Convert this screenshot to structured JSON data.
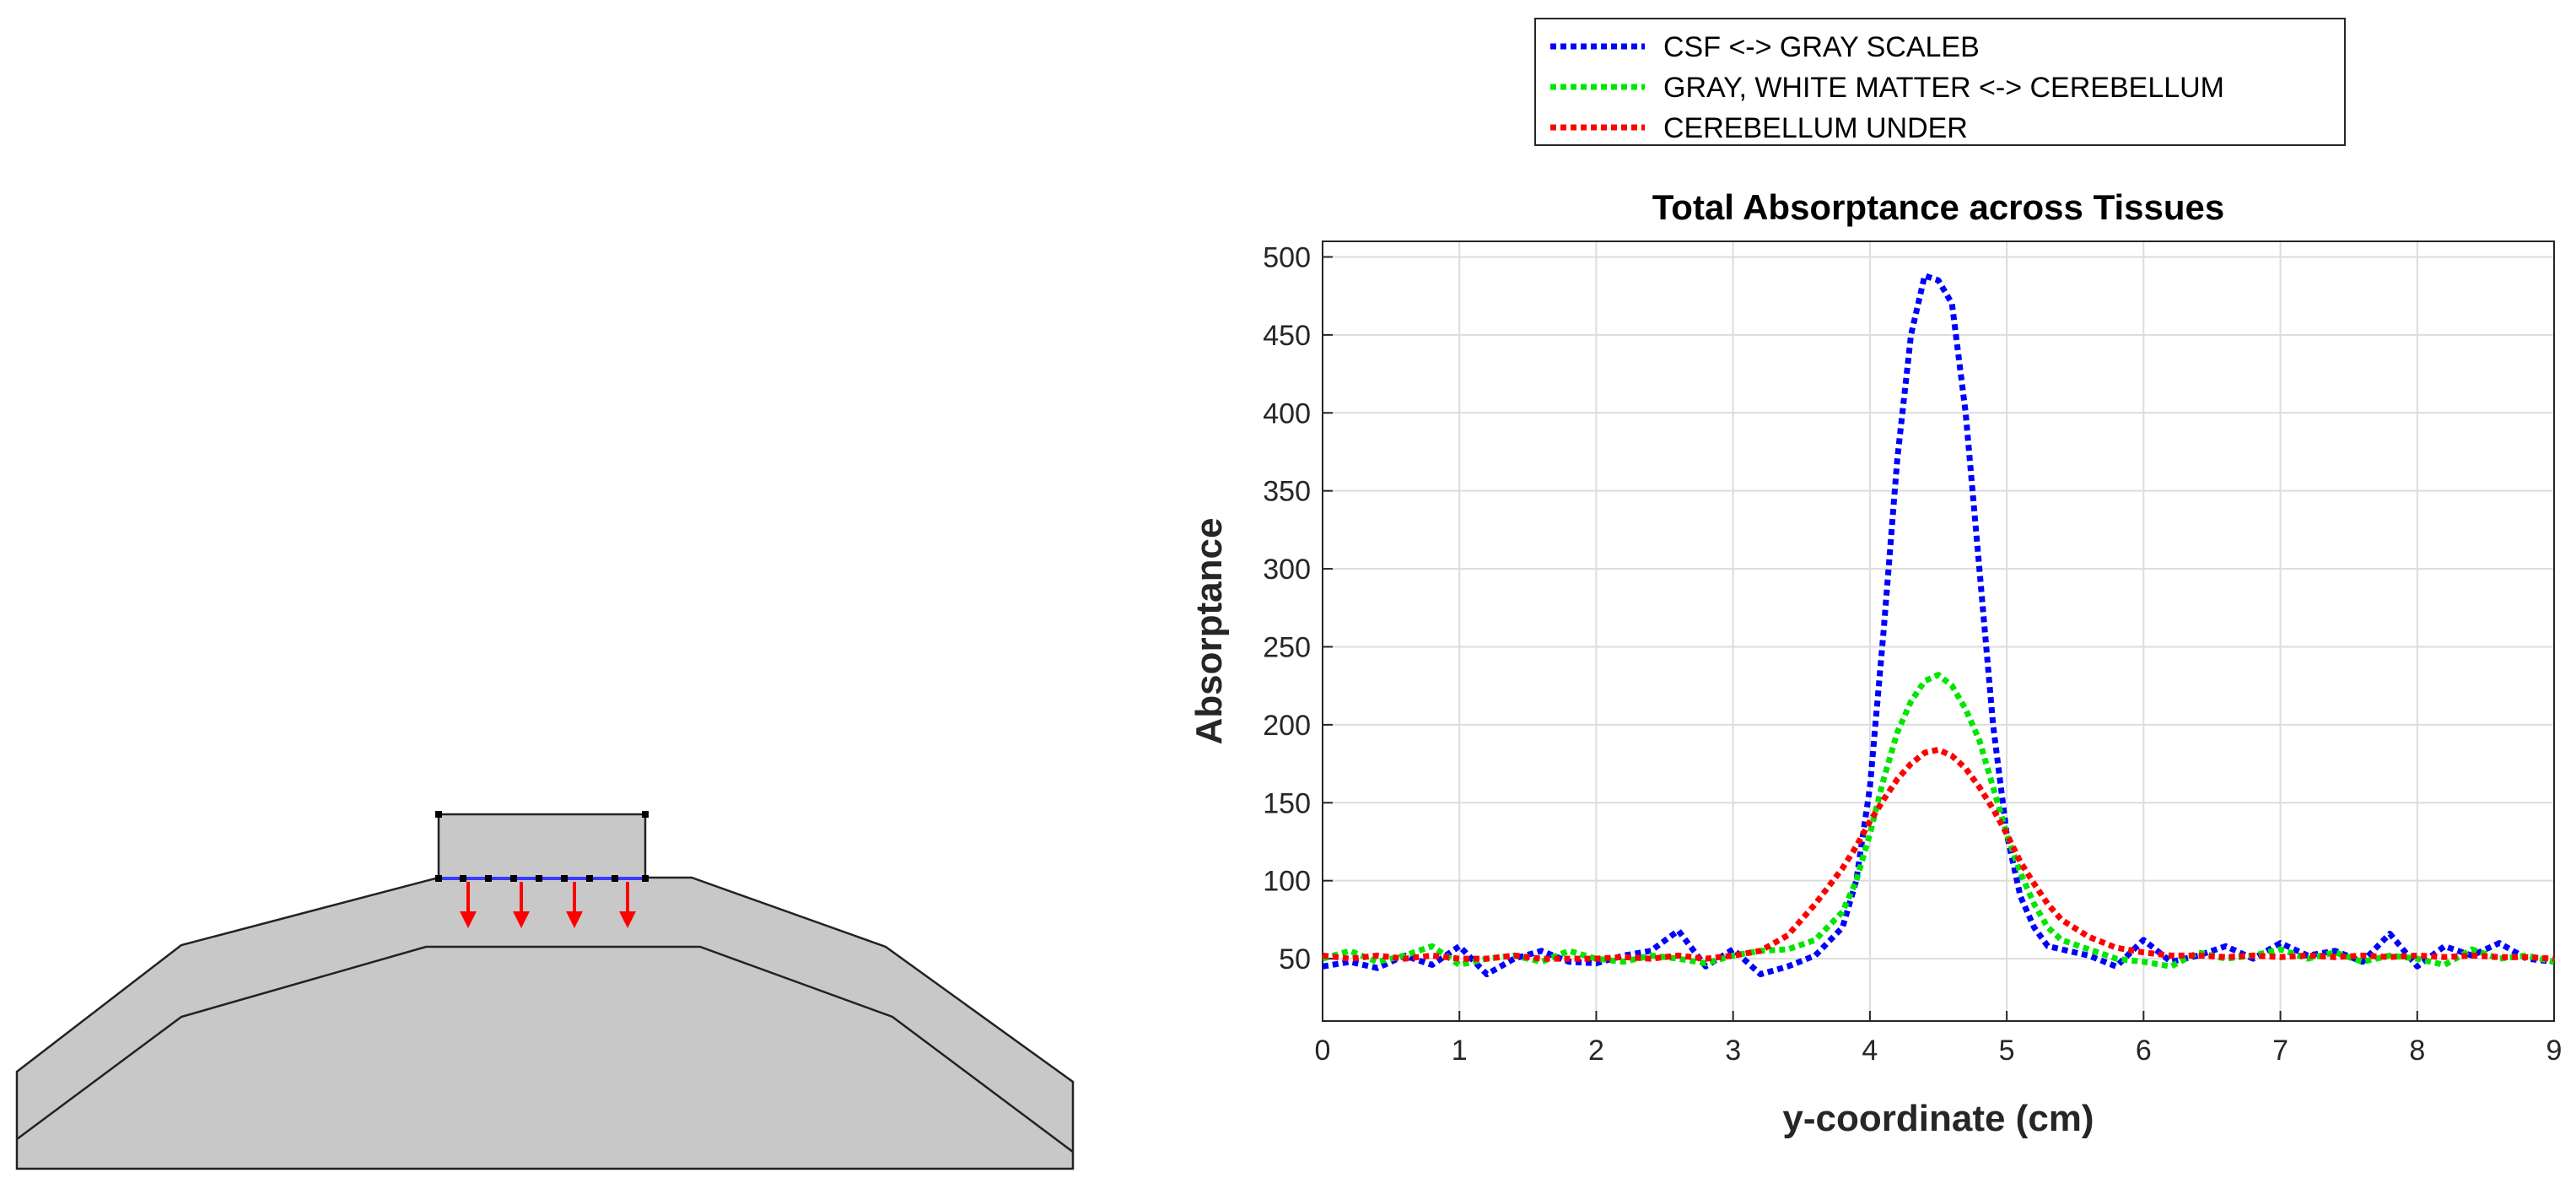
{
  "chart_data": {
    "type": "line",
    "title": "Total Absorptance across Tissues",
    "xlabel": "y-coordinate (cm)",
    "ylabel": "Absorptance",
    "xlim": [
      0,
      9
    ],
    "ylim": [
      10,
      510
    ],
    "xticks": [
      "0",
      "1",
      "2",
      "3",
      "4",
      "5",
      "6",
      "7",
      "8",
      "9"
    ],
    "yticks": [
      "50",
      "100",
      "150",
      "200",
      "250",
      "300",
      "350",
      "400",
      "450",
      "500"
    ],
    "grid": true,
    "legend_position": "above-top-right",
    "x": [
      0,
      0.2,
      0.4,
      0.6,
      0.8,
      1.0,
      1.2,
      1.4,
      1.6,
      1.8,
      2.0,
      2.2,
      2.4,
      2.6,
      2.8,
      3.0,
      3.2,
      3.4,
      3.6,
      3.8,
      3.9,
      4.0,
      4.1,
      4.2,
      4.3,
      4.4,
      4.5,
      4.6,
      4.7,
      4.8,
      4.9,
      5.0,
      5.1,
      5.2,
      5.3,
      5.4,
      5.6,
      5.8,
      6.0,
      6.2,
      6.4,
      6.6,
      6.8,
      7.0,
      7.2,
      7.4,
      7.6,
      7.8,
      8.0,
      8.2,
      8.4,
      8.6,
      8.8,
      9.0
    ],
    "series": [
      {
        "name": "CSF <-> GRAY SCALEB",
        "color": "#0000ff",
        "values": [
          45,
          48,
          44,
          52,
          46,
          58,
          40,
          50,
          55,
          48,
          47,
          52,
          55,
          68,
          45,
          56,
          40,
          45,
          52,
          70,
          100,
          160,
          260,
          370,
          450,
          488,
          485,
          470,
          400,
          300,
          200,
          130,
          90,
          70,
          58,
          56,
          52,
          45,
          62,
          48,
          52,
          58,
          50,
          60,
          52,
          55,
          48,
          66,
          45,
          58,
          52,
          60,
          50,
          48
        ]
      },
      {
        "name": "GRAY, WHITE MATTER <-> CEREBELLUM",
        "color": "#00e600",
        "values": [
          50,
          55,
          48,
          52,
          58,
          46,
          50,
          52,
          48,
          55,
          50,
          48,
          52,
          50,
          47,
          52,
          55,
          56,
          62,
          80,
          100,
          130,
          165,
          195,
          215,
          228,
          232,
          225,
          210,
          190,
          160,
          130,
          105,
          85,
          70,
          62,
          56,
          50,
          48,
          45,
          54,
          50,
          52,
          56,
          50,
          54,
          48,
          52,
          50,
          46,
          56,
          50,
          52,
          48
        ]
      },
      {
        "name": "CEREBELLUM UNDER",
        "color": "#ff0000",
        "values": [
          52,
          50,
          52,
          50,
          52,
          50,
          50,
          52,
          50,
          50,
          50,
          51,
          50,
          52,
          50,
          52,
          55,
          65,
          85,
          108,
          122,
          138,
          152,
          165,
          175,
          182,
          184,
          180,
          172,
          160,
          146,
          130,
          112,
          98,
          85,
          75,
          64,
          57,
          54,
          52,
          52,
          51,
          52,
          51,
          52,
          51,
          52,
          51,
          52,
          51,
          52,
          51,
          51,
          50
        ]
      }
    ]
  }
}
